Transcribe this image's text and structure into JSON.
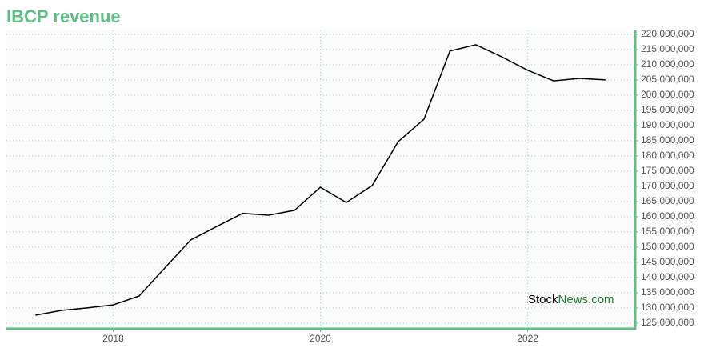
{
  "chart_data": {
    "type": "line",
    "title": "IBCP revenue",
    "x": [
      2017.25,
      2017.5,
      2017.75,
      2018,
      2018.25,
      2018.5,
      2018.75,
      2019,
      2019.25,
      2019.5,
      2019.75,
      2020,
      2020.25,
      2020.5,
      2020.75,
      2021,
      2021.25,
      2021.5,
      2021.75,
      2022,
      2022.25,
      2022.5,
      2022.75
    ],
    "series": [
      {
        "name": "IBCP revenue",
        "color": "#000000",
        "values": [
          127600000,
          129200000,
          130000000,
          131000000,
          133900000,
          143200000,
          152400000,
          156800000,
          161100000,
          160500000,
          162100000,
          169700000,
          164700000,
          170300000,
          184700000,
          192100000,
          214500000,
          216600000,
          212600000,
          208200000,
          204700000,
          205500000,
          205000000
        ]
      }
    ],
    "xlim": [
      2016.97,
      2023.03
    ],
    "xticks": [
      2018,
      2020,
      2022
    ],
    "ylim": [
      123400000,
      221300000
    ],
    "yticks": [
      {
        "value": 125000000,
        "label": "125,000,000"
      },
      {
        "value": 130000000,
        "label": "130,000,000"
      },
      {
        "value": 135000000,
        "label": "135,000,000"
      },
      {
        "value": 140000000,
        "label": "140,000,000"
      },
      {
        "value": 145000000,
        "label": "145,000,000"
      },
      {
        "value": 150000000,
        "label": "150,000,000"
      },
      {
        "value": 155000000,
        "label": "155,000,000"
      },
      {
        "value": 160000000,
        "label": "160,000,000"
      },
      {
        "value": 165000000,
        "label": "165,000,000"
      },
      {
        "value": 170000000,
        "label": "170,000,000"
      },
      {
        "value": 175000000,
        "label": "175,000,000"
      },
      {
        "value": 180000000,
        "label": "180,000,000"
      },
      {
        "value": 185000000,
        "label": "185,000,000"
      },
      {
        "value": 190000000,
        "label": "190,000,000"
      },
      {
        "value": 195000000,
        "label": "195,000,000"
      },
      {
        "value": 200000000,
        "label": "200,000,000"
      },
      {
        "value": 205000000,
        "label": "205,000,000"
      },
      {
        "value": 210000000,
        "label": "210,000,000"
      },
      {
        "value": 215000000,
        "label": "215,000,000"
      },
      {
        "value": 220000000,
        "label": "220,000,000"
      }
    ],
    "grid": true,
    "watermark": [
      "Stock",
      "News.com"
    ]
  }
}
